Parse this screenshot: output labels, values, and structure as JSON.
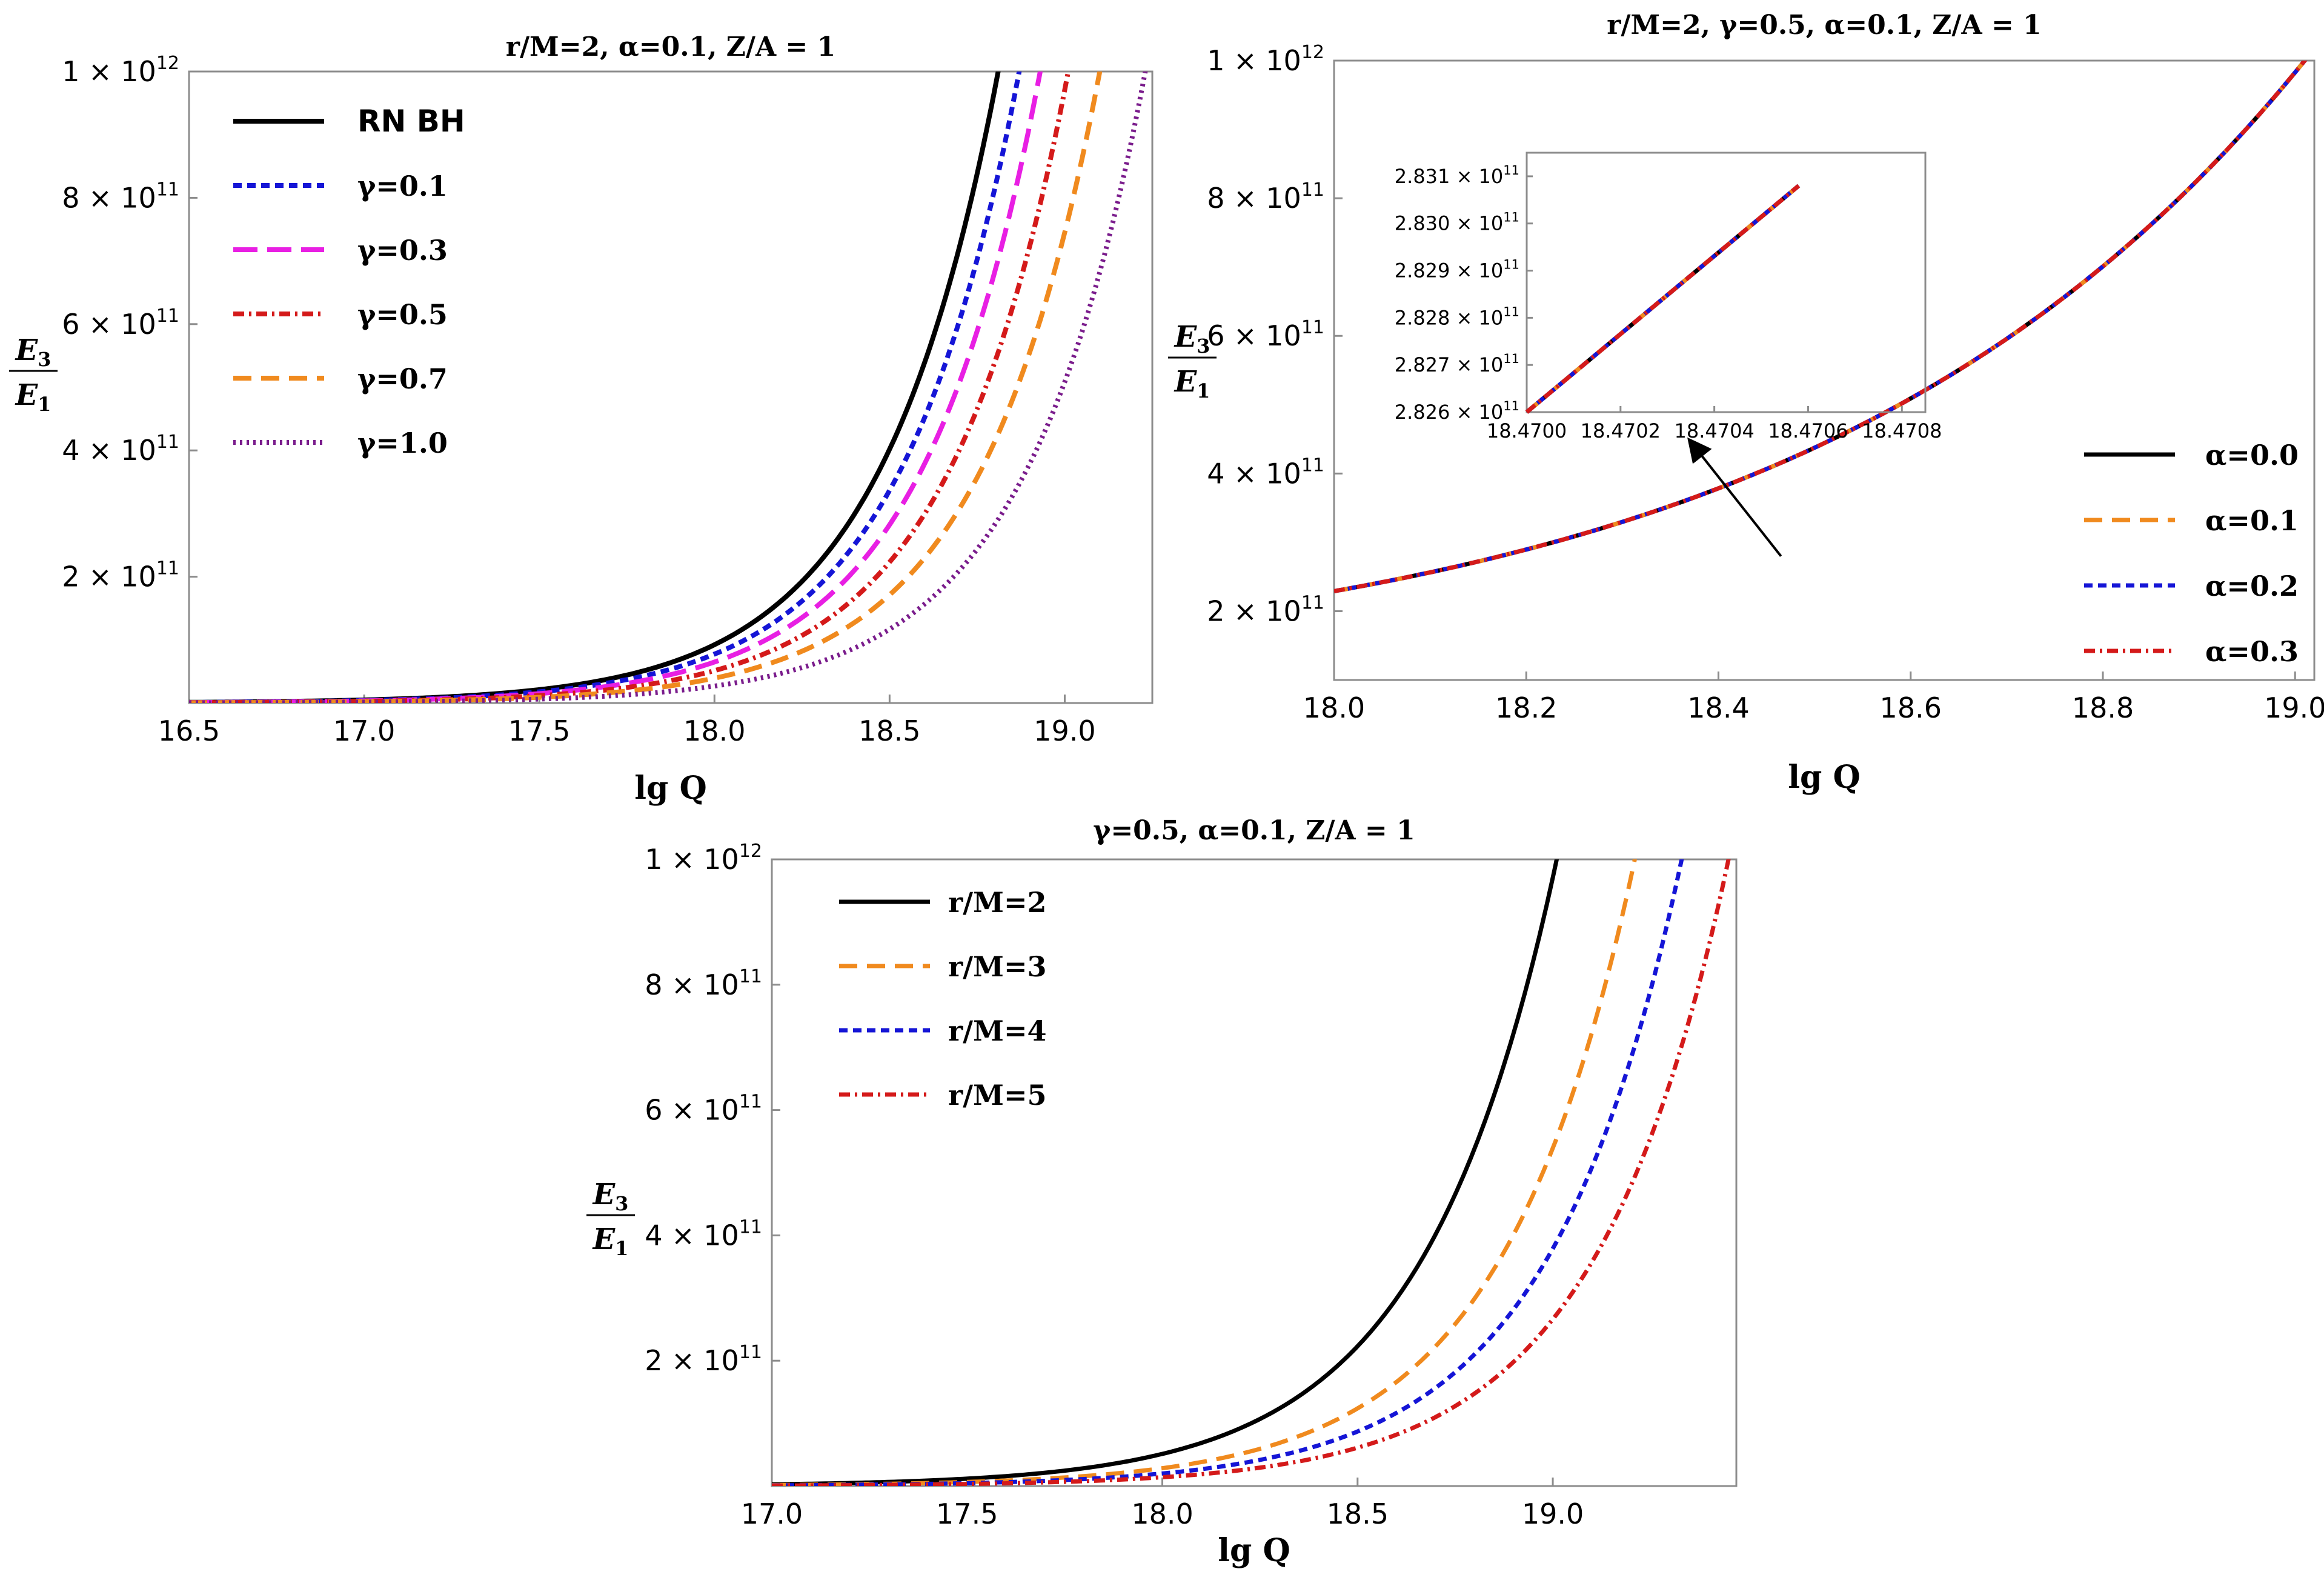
{
  "chart_data": [
    {
      "type": "line",
      "title": "r/M=2, α=0.1, Z/A = 1",
      "xlabel": "lg Q",
      "ylabel_num": "E",
      "ylabel_num_sub": "3",
      "ylabel_den": "E",
      "ylabel_den_sub": "1",
      "xlim": [
        16.5,
        19.25
      ],
      "ylim": [
        0,
        1000000000000.0
      ],
      "x_ticks": [
        "16.5",
        "17.0",
        "17.5",
        "18.0",
        "18.5",
        "19.0"
      ],
      "x_tick_values": [
        16.5,
        17.0,
        17.5,
        18.0,
        18.5,
        19.0
      ],
      "y_ticks": [
        {
          "value": 200000000000.0,
          "mantissa": "2",
          "times": "×",
          "base": "10",
          "exp": "11"
        },
        {
          "value": 400000000000.0,
          "mantissa": "4",
          "times": "×",
          "base": "10",
          "exp": "11"
        },
        {
          "value": 600000000000.0,
          "mantissa": "6",
          "times": "×",
          "base": "10",
          "exp": "11"
        },
        {
          "value": 800000000000.0,
          "mantissa": "8",
          "times": "×",
          "base": "10",
          "exp": "11"
        },
        {
          "value": 1000000000000.0,
          "mantissa": "1",
          "times": "×",
          "base": "10",
          "exp": "12"
        }
      ],
      "grid": false,
      "legend_position": "top-left",
      "series": [
        {
          "name": "RN BH",
          "color": "#000000",
          "dash": "solid",
          "x_at_1e12": 18.81
        },
        {
          "name": "γ=0.1",
          "color": "#1515d6",
          "dash": "short-dash",
          "x_at_1e12": 18.87
        },
        {
          "name": "γ=0.3",
          "color": "#e81fe3",
          "dash": "long-dash",
          "x_at_1e12": 18.93
        },
        {
          "name": "γ=0.5",
          "color": "#d41a1a",
          "dash": "dash-dot",
          "x_at_1e12": 19.01
        },
        {
          "name": "γ=0.7",
          "color": "#f08a1e",
          "dash": "dash",
          "x_at_1e12": 19.1
        },
        {
          "name": "γ=1.0",
          "color": "#7a1c8c",
          "dash": "dotted",
          "x_at_1e12": 19.23
        }
      ]
    },
    {
      "type": "line",
      "title": "r/M=2, γ=0.5, α=0.1, Z/A = 1",
      "xlabel": "lg Q",
      "ylabel_num": "E",
      "ylabel_num_sub": "3",
      "ylabel_den": "E",
      "ylabel_den_sub": "1",
      "xlim": [
        18.0,
        19.02
      ],
      "ylim": [
        100000000000.0,
        1000000000000.0
      ],
      "x_ticks": [
        "18.0",
        "18.2",
        "18.4",
        "18.6",
        "18.8",
        "19.0"
      ],
      "x_tick_values": [
        18.0,
        18.2,
        18.4,
        18.6,
        18.8,
        19.0
      ],
      "y_ticks": [
        {
          "value": 200000000000.0,
          "mantissa": "2",
          "times": "×",
          "base": "10",
          "exp": "11"
        },
        {
          "value": 400000000000.0,
          "mantissa": "4",
          "times": "×",
          "base": "10",
          "exp": "11"
        },
        {
          "value": 600000000000.0,
          "mantissa": "6",
          "times": "×",
          "base": "10",
          "exp": "11"
        },
        {
          "value": 800000000000.0,
          "mantissa": "8",
          "times": "×",
          "base": "10",
          "exp": "11"
        },
        {
          "value": 1000000000000.0,
          "mantissa": "1",
          "times": "×",
          "base": "10",
          "exp": "12"
        }
      ],
      "grid": false,
      "legend_position": "bottom-right",
      "series": [
        {
          "name": "α=0.0",
          "color": "#000000",
          "dash": "solid",
          "x_at_1e12": 19.01
        },
        {
          "name": "α=0.1",
          "color": "#f08a1e",
          "dash": "dash",
          "x_at_1e12": 19.01
        },
        {
          "name": "α=0.2",
          "color": "#1515d6",
          "dash": "short-dash",
          "x_at_1e12": 19.01
        },
        {
          "name": "α=0.3",
          "color": "#d41a1a",
          "dash": "dash-dot",
          "x_at_1e12": 19.01
        }
      ],
      "inset": {
        "xlim": [
          18.47,
          18.47085
        ],
        "ylim": [
          282600000000.0,
          283150000000.0
        ],
        "x_ticks": [
          "18.4700",
          "18.4702",
          "18.4704",
          "18.4706",
          "18.4708"
        ],
        "x_tick_values": [
          18.47,
          18.4702,
          18.4704,
          18.4706,
          18.4708
        ],
        "y_ticks": [
          {
            "value": 282600000000.0,
            "mantissa": "2.826",
            "times": "×",
            "base": "10",
            "exp": "11"
          },
          {
            "value": 282700000000.0,
            "mantissa": "2.827",
            "times": "×",
            "base": "10",
            "exp": "11"
          },
          {
            "value": 282800000000.0,
            "mantissa": "2.828",
            "times": "×",
            "base": "10",
            "exp": "11"
          },
          {
            "value": 282900000000.0,
            "mantissa": "2.829",
            "times": "×",
            "base": "10",
            "exp": "11"
          },
          {
            "value": 283000000000.0,
            "mantissa": "2.830",
            "times": "×",
            "base": "10",
            "exp": "11"
          },
          {
            "value": 283100000000.0,
            "mantissa": "2.831",
            "times": "×",
            "base": "10",
            "exp": "11"
          }
        ],
        "line": {
          "x": [
            18.47,
            18.47058
          ],
          "y": [
            282600000000.0,
            283080000000.0
          ]
        },
        "arrow_target": {
          "x": 18.465,
          "y": 280000000000.0
        }
      }
    },
    {
      "type": "line",
      "title": "γ=0.5, α=0.1, Z/A = 1",
      "xlabel": "lg Q",
      "ylabel_num": "E",
      "ylabel_num_sub": "3",
      "ylabel_den": "E",
      "ylabel_den_sub": "1",
      "xlim": [
        17.0,
        19.47
      ],
      "ylim": [
        0,
        1000000000000.0
      ],
      "x_ticks": [
        "17.0",
        "17.5",
        "18.0",
        "18.5",
        "19.0"
      ],
      "x_tick_values": [
        17.0,
        17.5,
        18.0,
        18.5,
        19.0
      ],
      "y_ticks": [
        {
          "value": 200000000000.0,
          "mantissa": "2",
          "times": "×",
          "base": "10",
          "exp": "11"
        },
        {
          "value": 400000000000.0,
          "mantissa": "4",
          "times": "×",
          "base": "10",
          "exp": "11"
        },
        {
          "value": 600000000000.0,
          "mantissa": "6",
          "times": "×",
          "base": "10",
          "exp": "11"
        },
        {
          "value": 800000000000.0,
          "mantissa": "8",
          "times": "×",
          "base": "10",
          "exp": "11"
        },
        {
          "value": 1000000000000.0,
          "mantissa": "1",
          "times": "×",
          "base": "10",
          "exp": "12"
        }
      ],
      "grid": false,
      "legend_position": "top-left",
      "series": [
        {
          "name": "r/M=2",
          "color": "#000000",
          "dash": "solid",
          "x_at_1e12": 19.01
        },
        {
          "name": "r/M=3",
          "color": "#f08a1e",
          "dash": "dash",
          "x_at_1e12": 19.21
        },
        {
          "name": "r/M=4",
          "color": "#1515d6",
          "dash": "short-dash",
          "x_at_1e12": 19.33
        },
        {
          "name": "r/M=5",
          "color": "#d41a1a",
          "dash": "dash-dot",
          "x_at_1e12": 19.45
        }
      ]
    }
  ]
}
